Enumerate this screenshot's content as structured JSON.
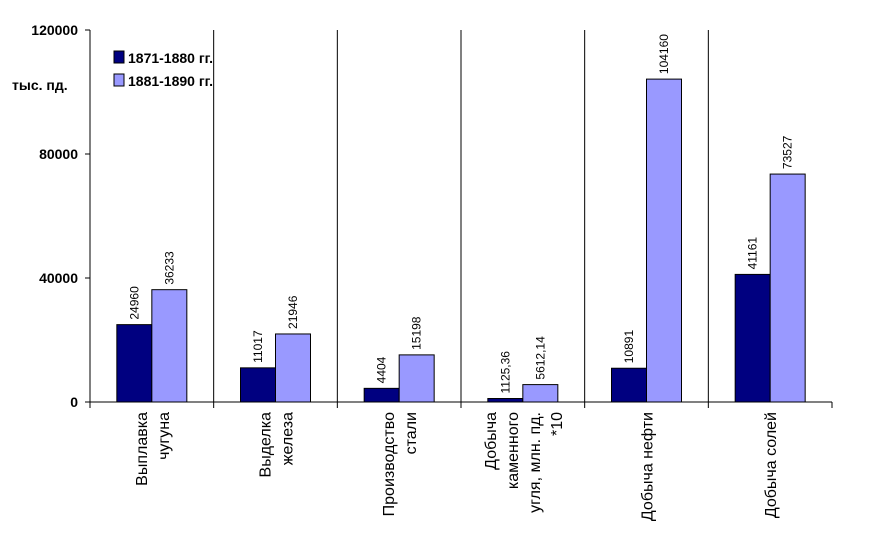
{
  "chart_data": {
    "type": "bar",
    "unit_label": "тыс. пд.",
    "categories": [
      [
        "Выплавка",
        "чугуна"
      ],
      [
        "Выделка",
        "железа"
      ],
      [
        "Производство",
        "стали"
      ],
      [
        "Добыча",
        "каменного",
        "угля, млн. пд.",
        "*10"
      ],
      [
        "Добыча нефти"
      ],
      [
        "Добыча солей"
      ]
    ],
    "series": [
      {
        "name": "1871-1880 гг.",
        "color": "#000080",
        "values": [
          24960,
          11017,
          4404,
          1125.36,
          10891,
          41161
        ],
        "labels": [
          "24960",
          "11017",
          "4404",
          "1125,36",
          "10891",
          "41161"
        ]
      },
      {
        "name": "1881-1890 гг.",
        "color": "#9999ff",
        "values": [
          36233,
          21946,
          15198,
          5612.14,
          104160,
          73527
        ],
        "labels": [
          "36233",
          "21946",
          "15198",
          "5612,14",
          "104160",
          "73527"
        ]
      }
    ],
    "ylim": [
      0,
      120000
    ],
    "yticks": [
      {
        "value": 0,
        "label": "0"
      },
      {
        "value": 40000,
        "label": "40000"
      },
      {
        "value": 80000,
        "label": "80000"
      },
      {
        "value": 120000,
        "label": "120000"
      }
    ],
    "legend_position": "top-left",
    "category_separators": true
  }
}
